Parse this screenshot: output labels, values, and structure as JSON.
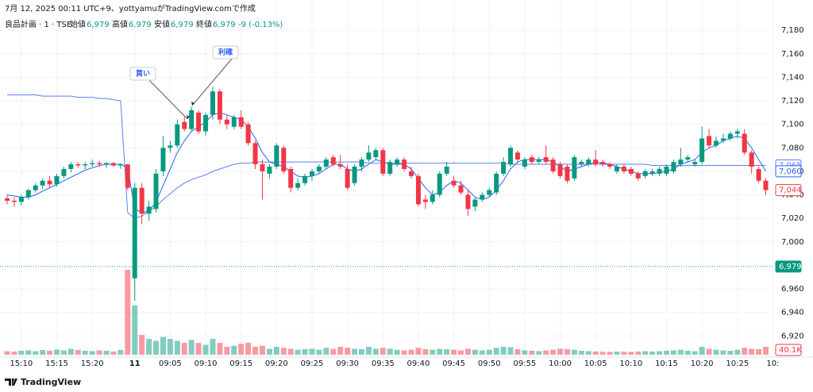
{
  "chart_data": {
    "type": "candlestick",
    "title": "7月 12, 2025 00:11 UTC+9、yottyamuがTradingView.comで作成",
    "legend": {
      "symbol": "良品計画 · 1 · TSE",
      "items": [
        {
          "key": "始値",
          "value": "6,979"
        },
        {
          "key": "高値",
          "value": "6,979"
        },
        {
          "key": "安値",
          "value": "6,979"
        },
        {
          "key": "終値",
          "value": "6,979"
        }
      ],
      "change": "-9 (-0.13%)"
    },
    "brand": "TradingView",
    "up_color": "#089981",
    "down_color": "#f23645",
    "ohlc": [
      [
        7037,
        7040,
        7032,
        7035
      ],
      [
        7035,
        7038,
        7030,
        7034
      ],
      [
        7034,
        7040,
        7031,
        7038
      ],
      [
        7038,
        7045,
        7036,
        7044
      ],
      [
        7044,
        7050,
        7042,
        7048
      ],
      [
        7048,
        7054,
        7045,
        7052
      ],
      [
        7052,
        7056,
        7046,
        7049
      ],
      [
        7049,
        7058,
        7047,
        7056
      ],
      [
        7056,
        7064,
        7054,
        7062
      ],
      [
        7062,
        7068,
        7059,
        7066
      ],
      [
        7066,
        7068,
        7063,
        7065
      ],
      [
        7065,
        7068,
        7062,
        7066
      ],
      [
        7066,
        7070,
        7064,
        7067
      ],
      [
        7067,
        7069,
        7064,
        7066
      ],
      [
        7066,
        7068,
        7063,
        7067
      ],
      [
        7067,
        7068,
        7064,
        7065
      ],
      [
        7065,
        7067,
        7062,
        7066
      ],
      [
        7066,
        7066,
        7044,
        7046
      ],
      [
        6969,
        7050,
        6950,
        7046
      ],
      [
        7046,
        7050,
        7015,
        7024
      ],
      [
        7024,
        7035,
        7018,
        7030
      ],
      [
        7028,
        7062,
        7025,
        7058
      ],
      [
        7060,
        7090,
        7056,
        7080
      ],
      [
        7080,
        7086,
        7076,
        7082
      ],
      [
        7082,
        7104,
        7080,
        7100
      ],
      [
        7102,
        7106,
        7094,
        7096
      ],
      [
        7096,
        7115,
        7094,
        7112
      ],
      [
        7110,
        7112,
        7092,
        7094
      ],
      [
        7094,
        7110,
        7090,
        7108
      ],
      [
        7108,
        7132,
        7104,
        7128
      ],
      [
        7128,
        7130,
        7100,
        7104
      ],
      [
        7104,
        7108,
        7096,
        7100
      ],
      [
        7098,
        7108,
        7096,
        7106
      ],
      [
        7106,
        7112,
        7096,
        7098
      ],
      [
        7100,
        7102,
        7082,
        7084
      ],
      [
        7084,
        7086,
        7062,
        7066
      ],
      [
        7066,
        7070,
        7036,
        7060
      ],
      [
        7058,
        7066,
        7054,
        7064
      ],
      [
        7064,
        7084,
        7062,
        7082
      ],
      [
        7080,
        7082,
        7058,
        7060
      ],
      [
        7062,
        7064,
        7042,
        7046
      ],
      [
        7046,
        7054,
        7044,
        7050
      ],
      [
        7050,
        7058,
        7048,
        7056
      ],
      [
        7056,
        7062,
        7052,
        7060
      ],
      [
        7060,
        7066,
        7058,
        7064
      ],
      [
        7064,
        7072,
        7062,
        7070
      ],
      [
        7072,
        7074,
        7064,
        7066
      ],
      [
        7066,
        7074,
        7062,
        7064
      ],
      [
        7062,
        7066,
        7044,
        7046
      ],
      [
        7050,
        7066,
        7048,
        7064
      ],
      [
        7064,
        7072,
        7060,
        7070
      ],
      [
        7070,
        7082,
        7068,
        7076
      ],
      [
        7072,
        7080,
        7070,
        7078
      ],
      [
        7078,
        7080,
        7056,
        7058
      ],
      [
        7058,
        7070,
        7056,
        7068
      ],
      [
        7066,
        7072,
        7064,
        7070
      ],
      [
        7070,
        7072,
        7060,
        7062
      ],
      [
        7060,
        7064,
        7054,
        7056
      ],
      [
        7056,
        7058,
        7030,
        7032
      ],
      [
        7036,
        7040,
        7028,
        7034
      ],
      [
        7034,
        7044,
        7032,
        7040
      ],
      [
        7040,
        7060,
        7038,
        7058
      ],
      [
        7058,
        7068,
        7056,
        7064
      ],
      [
        7052,
        7056,
        7046,
        7048
      ],
      [
        7048,
        7052,
        7040,
        7042
      ],
      [
        7040,
        7044,
        7022,
        7028
      ],
      [
        7030,
        7038,
        7026,
        7036
      ],
      [
        7036,
        7042,
        7034,
        7040
      ],
      [
        7040,
        7046,
        7038,
        7044
      ],
      [
        7042,
        7060,
        7040,
        7058
      ],
      [
        7058,
        7072,
        7056,
        7068
      ],
      [
        7066,
        7082,
        7064,
        7080
      ],
      [
        7076,
        7078,
        7068,
        7070
      ],
      [
        7064,
        7072,
        7062,
        7070
      ],
      [
        7072,
        7074,
        7066,
        7068
      ],
      [
        7068,
        7072,
        7066,
        7070
      ],
      [
        7072,
        7082,
        7066,
        7068
      ],
      [
        7070,
        7072,
        7058,
        7060
      ],
      [
        7066,
        7068,
        7054,
        7056
      ],
      [
        7064,
        7066,
        7050,
        7052
      ],
      [
        7054,
        7074,
        7052,
        7072
      ],
      [
        7066,
        7070,
        7064,
        7068
      ],
      [
        7066,
        7072,
        7064,
        7070
      ],
      [
        7070,
        7078,
        7064,
        7066
      ],
      [
        7068,
        7070,
        7064,
        7066
      ],
      [
        7066,
        7068,
        7062,
        7064
      ],
      [
        7060,
        7066,
        7058,
        7064
      ],
      [
        7064,
        7066,
        7058,
        7060
      ],
      [
        7062,
        7064,
        7056,
        7058
      ],
      [
        7058,
        7060,
        7052,
        7054
      ],
      [
        7056,
        7062,
        7054,
        7060
      ],
      [
        7058,
        7062,
        7056,
        7060
      ],
      [
        7058,
        7064,
        7056,
        7062
      ],
      [
        7058,
        7066,
        7056,
        7064
      ],
      [
        7060,
        7070,
        7058,
        7068
      ],
      [
        7066,
        7080,
        7064,
        7070
      ],
      [
        7070,
        7074,
        7068,
        7072
      ],
      [
        7066,
        7070,
        7064,
        7068
      ],
      [
        7068,
        7098,
        7066,
        7088
      ],
      [
        7090,
        7096,
        7080,
        7082
      ],
      [
        7082,
        7090,
        7080,
        7086
      ],
      [
        7086,
        7092,
        7084,
        7088
      ],
      [
        7088,
        7094,
        7086,
        7092
      ],
      [
        7092,
        7096,
        7088,
        7094
      ],
      [
        7092,
        7096,
        7074,
        7076
      ],
      [
        7076,
        7078,
        7058,
        7064
      ],
      [
        7062,
        7064,
        7050,
        7052
      ],
      [
        7052,
        7054,
        7040,
        7044
      ]
    ],
    "close_label": "7,044",
    "volume": [
      18000,
      16000,
      20000,
      22000,
      18000,
      24000,
      20000,
      26000,
      22000,
      30000,
      24000,
      20000,
      18000,
      22000,
      20000,
      16000,
      24000,
      430000,
      250000,
      100000,
      80000,
      70000,
      90000,
      80000,
      70000,
      60000,
      75000,
      60000,
      50000,
      80000,
      60000,
      40000,
      45000,
      55000,
      60000,
      40000,
      45000,
      30000,
      40000,
      35000,
      30000,
      25000,
      28000,
      30000,
      25000,
      35000,
      30000,
      40000,
      35000,
      30000,
      28000,
      40000,
      30000,
      35000,
      30000,
      25000,
      22000,
      25000,
      35000,
      28000,
      25000,
      30000,
      28000,
      25000,
      22000,
      30000,
      25000,
      22000,
      25000,
      35000,
      40000,
      38000,
      28000,
      22000,
      20000,
      18000,
      22000,
      25000,
      30000,
      28000,
      25000,
      20000,
      18000,
      16000,
      15000,
      14000,
      16000,
      15000,
      14000,
      16000,
      18000,
      16000,
      18000,
      20000,
      22000,
      25000,
      20000,
      18000,
      40000,
      30000,
      25000,
      22000,
      20000,
      25000,
      35000,
      30000,
      28000,
      40100
    ],
    "volume_label": "40.1K",
    "lines": [
      {
        "color": "#5b7ff7",
        "last_label": "7,065",
        "values": [
          7125,
          7125,
          7125,
          7125,
          7125,
          7124,
          7124,
          7124,
          7124,
          7124,
          7123,
          7123,
          7123,
          7122,
          7122,
          7121,
          7120,
          7025,
          7020,
          7022,
          7026,
          7030,
          7036,
          7041,
          7046,
          7050,
          7053,
          7055,
          7057,
          7060,
          7062,
          7064,
          7066,
          7067,
          7067,
          7068,
          7068,
          7068,
          7068,
          7068,
          7068,
          7068,
          7068,
          7068,
          7068,
          7068,
          7068,
          7068,
          7068,
          7068,
          7068,
          7067,
          7067,
          7067,
          7067,
          7067,
          7067,
          7067,
          7067,
          7067,
          7067,
          7067,
          7067,
          7067,
          7067,
          7067,
          7067,
          7067,
          7067,
          7067,
          7067,
          7066,
          7066,
          7066,
          7066,
          7066,
          7066,
          7066,
          7066,
          7066,
          7066,
          7066,
          7066,
          7066,
          7066,
          7066,
          7066,
          7066,
          7066,
          7066,
          7066,
          7065,
          7065,
          7065,
          7065,
          7065,
          7065,
          7065,
          7065,
          7065,
          7065,
          7065,
          7065,
          7065,
          7065,
          7065,
          7065,
          7065
        ]
      },
      {
        "color": "#2962ff",
        "last_label": "7,060",
        "values": [
          7040,
          7039,
          7038,
          7038,
          7040,
          7043,
          7046,
          7049,
          7052,
          7055,
          7058,
          7061,
          7063,
          7065,
          7066,
          7066,
          7066,
          7063,
          7028,
          7025,
          7026,
          7034,
          7048,
          7062,
          7076,
          7086,
          7094,
          7098,
          7102,
          7108,
          7110,
          7108,
          7106,
          7104,
          7098,
          7088,
          7076,
          7068,
          7066,
          7064,
          7060,
          7056,
          7055,
          7056,
          7058,
          7062,
          7066,
          7066,
          7062,
          7060,
          7062,
          7066,
          7070,
          7068,
          7066,
          7066,
          7066,
          7062,
          7054,
          7046,
          7040,
          7042,
          7048,
          7052,
          7050,
          7044,
          7038,
          7036,
          7038,
          7044,
          7052,
          7062,
          7068,
          7070,
          7070,
          7070,
          7070,
          7068,
          7064,
          7060,
          7062,
          7064,
          7066,
          7068,
          7067,
          7066,
          7064,
          7062,
          7060,
          7058,
          7058,
          7058,
          7059,
          7060,
          7062,
          7066,
          7068,
          7070,
          7076,
          7080,
          7082,
          7086,
          7088,
          7090,
          7088,
          7080,
          7070,
          7060
        ]
      }
    ],
    "last_price": 6979,
    "last_price_label": "6,979",
    "annotations": [
      {
        "text": "買い",
        "index": 25
      },
      {
        "text": "利確",
        "index": 26
      }
    ],
    "ylim": [
      6902,
      7199
    ],
    "yticks": [
      {
        "value": 7180,
        "label": "7,180"
      },
      {
        "value": 7160,
        "label": "7,160"
      },
      {
        "value": 7140,
        "label": "7,140"
      },
      {
        "value": 7120,
        "label": "7,120"
      },
      {
        "value": 7100,
        "label": "7,100"
      },
      {
        "value": 7080,
        "label": "7,080"
      },
      {
        "value": 7060,
        "label": "7,060"
      },
      {
        "value": 7040,
        "label": "7,040"
      },
      {
        "value": 7020,
        "label": "7,020"
      },
      {
        "value": 7000,
        "label": "7,000"
      },
      {
        "value": 6960,
        "label": "6,960"
      },
      {
        "value": 6940,
        "label": "6,940"
      },
      {
        "value": 6920,
        "label": "6,920"
      }
    ],
    "xticks": [
      {
        "value": 2,
        "label": "15:10"
      },
      {
        "value": 7,
        "label": "15:15"
      },
      {
        "value": 12,
        "label": "15:20"
      },
      {
        "value": 18,
        "label": "11"
      },
      {
        "value": 23,
        "label": "09:05"
      },
      {
        "value": 28,
        "label": "09:10"
      },
      {
        "value": 33,
        "label": "09:15"
      },
      {
        "value": 38,
        "label": "09:20"
      },
      {
        "value": 43,
        "label": "09:25"
      },
      {
        "value": 48,
        "label": "09:30"
      },
      {
        "value": 53,
        "label": "09:35"
      },
      {
        "value": 58,
        "label": "09:40"
      },
      {
        "value": 63,
        "label": "09:45"
      },
      {
        "value": 68,
        "label": "09:50"
      },
      {
        "value": 73,
        "label": "09:55"
      },
      {
        "value": 78,
        "label": "10:00"
      },
      {
        "value": 83,
        "label": "10:05"
      },
      {
        "value": 88,
        "label": "10:10"
      },
      {
        "value": 93,
        "label": "10:15"
      },
      {
        "value": 98,
        "label": "10:20"
      },
      {
        "value": 103,
        "label": "10:25"
      },
      {
        "value": 108,
        "label": "10:"
      }
    ],
    "grid": true
  }
}
